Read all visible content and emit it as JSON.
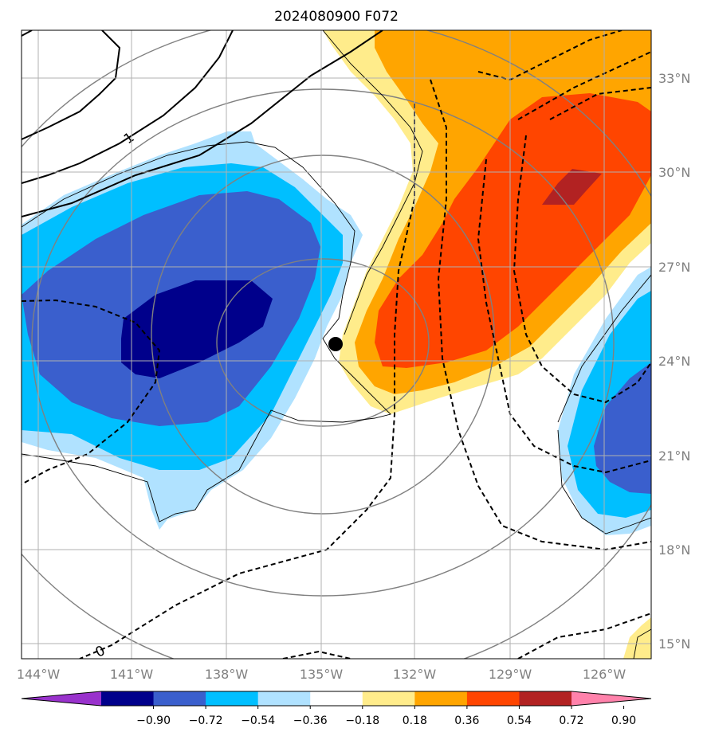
{
  "title": "2024080900 F072",
  "lon_labels": [
    "144°W",
    "141°W",
    "138°W",
    "135°W",
    "132°W",
    "129°W",
    "126°W"
  ],
  "lat_labels": [
    "33°N",
    "30°N",
    "27°N",
    "24°N",
    "21°N",
    "18°N",
    "15°N"
  ],
  "colorbar": {
    "ticks": [
      "−0.90",
      "−0.72",
      "−0.54",
      "−0.36",
      "−0.18",
      "0.18",
      "0.36",
      "0.54",
      "0.72",
      "0.90"
    ],
    "colors": [
      "#9932cc",
      "#00008b",
      "#3a5fcd",
      "#00bfff",
      "#b0e2ff",
      "#ffffff",
      "#ffec8b",
      "#ffa500",
      "#ff4500",
      "#b22222",
      "#ff82ab"
    ]
  },
  "contour_labels": [
    "1",
    "0"
  ],
  "center_marker": "storm-center"
}
